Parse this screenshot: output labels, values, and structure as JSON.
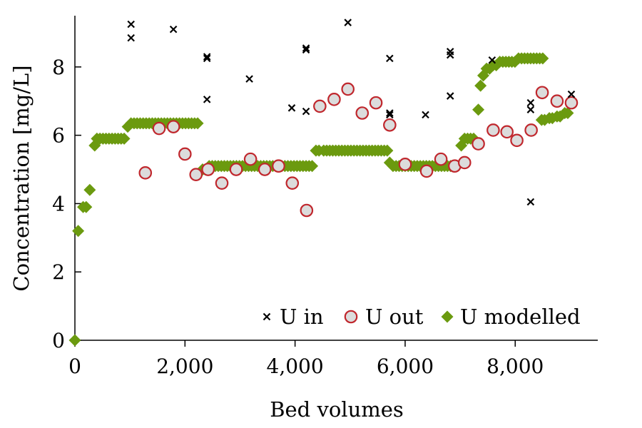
{
  "chart_data": {
    "type": "scatter",
    "title": "",
    "xlabel": "Bed volumes",
    "ylabel": "Concentration [mg/L]",
    "xlim": [
      0,
      9500
    ],
    "ylim": [
      0,
      9.5
    ],
    "x_ticks": [
      0,
      2000,
      4000,
      6000,
      8000
    ],
    "x_tick_labels": [
      "0",
      "2,000",
      "4,000",
      "6,000",
      "8,000"
    ],
    "y_ticks": [
      0,
      2,
      4,
      6,
      8
    ],
    "y_tick_labels": [
      "0",
      "2",
      "4",
      "6",
      "8"
    ],
    "grid": false,
    "legend_position": "bottom-right",
    "series": [
      {
        "name": "U in",
        "marker": "x",
        "color": "#000000",
        "points": [
          [
            1020,
            9.25
          ],
          [
            1020,
            8.85
          ],
          [
            1790,
            9.1
          ],
          [
            2400,
            8.3
          ],
          [
            2400,
            8.25
          ],
          [
            2400,
            7.05
          ],
          [
            3170,
            7.65
          ],
          [
            3940,
            6.8
          ],
          [
            4200,
            8.55
          ],
          [
            4200,
            8.5
          ],
          [
            4200,
            6.7
          ],
          [
            4960,
            9.3
          ],
          [
            5720,
            8.25
          ],
          [
            5720,
            6.65
          ],
          [
            5720,
            6.6
          ],
          [
            6370,
            6.6
          ],
          [
            6820,
            8.45
          ],
          [
            6820,
            8.35
          ],
          [
            6820,
            7.15
          ],
          [
            7580,
            8.2
          ],
          [
            8280,
            6.95
          ],
          [
            8280,
            6.75
          ],
          [
            8280,
            4.05
          ],
          [
            9020,
            7.2
          ]
        ]
      },
      {
        "name": "U out",
        "marker": "circle",
        "color": "#c0272d",
        "points": [
          [
            1280,
            4.9
          ],
          [
            1530,
            6.2
          ],
          [
            1790,
            6.25
          ],
          [
            2000,
            5.45
          ],
          [
            2200,
            4.85
          ],
          [
            2420,
            5.0
          ],
          [
            2670,
            4.6
          ],
          [
            2930,
            5.0
          ],
          [
            3190,
            5.3
          ],
          [
            3450,
            5.0
          ],
          [
            3700,
            5.1
          ],
          [
            3950,
            4.6
          ],
          [
            4210,
            3.8
          ],
          [
            4450,
            6.85
          ],
          [
            4710,
            7.05
          ],
          [
            4960,
            7.35
          ],
          [
            5220,
            6.65
          ],
          [
            5470,
            6.95
          ],
          [
            5720,
            6.3
          ],
          [
            6000,
            5.15
          ],
          [
            6390,
            4.95
          ],
          [
            6650,
            5.3
          ],
          [
            6900,
            5.1
          ],
          [
            7080,
            5.2
          ],
          [
            7330,
            5.75
          ],
          [
            7600,
            6.15
          ],
          [
            7850,
            6.1
          ],
          [
            8030,
            5.85
          ],
          [
            8290,
            6.15
          ],
          [
            8490,
            7.25
          ],
          [
            8760,
            7.0
          ],
          [
            9020,
            6.95
          ]
        ]
      },
      {
        "name": "U modelled",
        "marker": "diamond",
        "color": "#6b9a0f",
        "segments": [
          {
            "x_start": 0,
            "x_end": 0,
            "y": 0.0
          },
          {
            "x_start": 60,
            "x_end": 110,
            "y": 3.2
          },
          {
            "x_start": 150,
            "x_end": 230,
            "y": 3.9
          },
          {
            "x_start": 270,
            "x_end": 320,
            "y": 4.4
          },
          {
            "x_start": 360,
            "x_end": 360,
            "y": 5.7
          },
          {
            "x_start": 400,
            "x_end": 900,
            "y": 5.9
          },
          {
            "x_start": 960,
            "x_end": 960,
            "y": 6.25
          },
          {
            "x_start": 1020,
            "x_end": 2260,
            "y": 6.35
          },
          {
            "x_start": 2260,
            "x_end": 2260,
            "y": 4.9
          },
          {
            "x_start": 2320,
            "x_end": 2380,
            "y": 5.0
          },
          {
            "x_start": 2440,
            "x_end": 4320,
            "y": 5.1
          },
          {
            "x_start": 4380,
            "x_end": 4460,
            "y": 5.55
          },
          {
            "x_start": 4520,
            "x_end": 5720,
            "y": 5.55
          },
          {
            "x_start": 5720,
            "x_end": 5720,
            "y": 5.2
          },
          {
            "x_start": 5780,
            "x_end": 6960,
            "y": 5.1
          },
          {
            "x_start": 7020,
            "x_end": 7020,
            "y": 5.7
          },
          {
            "x_start": 7080,
            "x_end": 7260,
            "y": 5.9
          },
          {
            "x_start": 7330,
            "x_end": 7330,
            "y": 6.75
          },
          {
            "x_start": 7370,
            "x_end": 7370,
            "y": 7.45
          },
          {
            "x_start": 7420,
            "x_end": 7420,
            "y": 7.75
          },
          {
            "x_start": 7480,
            "x_end": 7540,
            "y": 7.95
          },
          {
            "x_start": 7600,
            "x_end": 7660,
            "y": 8.05
          },
          {
            "x_start": 7720,
            "x_end": 8000,
            "y": 8.15
          },
          {
            "x_start": 8060,
            "x_end": 8500,
            "y": 8.25
          },
          {
            "x_start": 8480,
            "x_end": 8560,
            "y": 6.45
          },
          {
            "x_start": 8620,
            "x_end": 8700,
            "y": 6.5
          },
          {
            "x_start": 8760,
            "x_end": 8840,
            "y": 6.55
          },
          {
            "x_start": 8900,
            "x_end": 9000,
            "y": 6.65
          }
        ]
      }
    ]
  }
}
